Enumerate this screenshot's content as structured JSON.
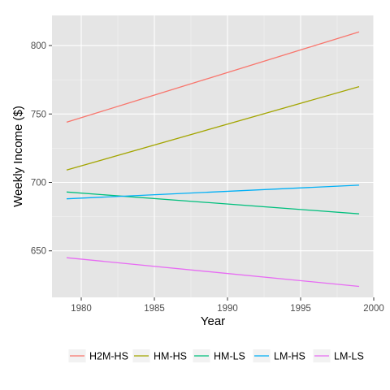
{
  "chart_data": {
    "type": "line",
    "xlabel": "Year",
    "ylabel": "Weekly Income ($)",
    "xlim": [
      1978,
      2000
    ],
    "ylim": [
      616,
      822
    ],
    "x_ticks": [
      1980,
      1985,
      1990,
      1995,
      2000
    ],
    "y_ticks": [
      650,
      700,
      750,
      800
    ],
    "grid": true,
    "legend_position": "bottom",
    "series": [
      {
        "name": "H2M-HS",
        "color": "#F8766D",
        "x": [
          1979,
          1999
        ],
        "values": [
          744,
          810
        ]
      },
      {
        "name": "HM-HS",
        "color": "#A3A500",
        "x": [
          1979,
          1999
        ],
        "values": [
          709,
          770
        ]
      },
      {
        "name": "HM-LS",
        "color": "#00BF7D",
        "x": [
          1979,
          1999
        ],
        "values": [
          693,
          677
        ]
      },
      {
        "name": "LM-HS",
        "color": "#00B0F6",
        "x": [
          1979,
          1999
        ],
        "values": [
          688,
          698
        ]
      },
      {
        "name": "LM-LS",
        "color": "#E76BF3",
        "x": [
          1979,
          1999
        ],
        "values": [
          645,
          624
        ]
      }
    ]
  },
  "colors": {
    "panel_background": "#E5E5E5",
    "grid_major": "#FFFFFF",
    "grid_minor": "#F2F2F2"
  }
}
